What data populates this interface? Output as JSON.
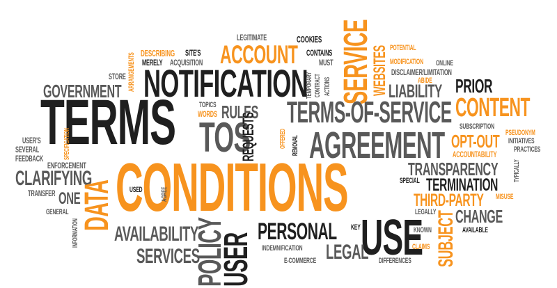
{
  "words": {
    "terms": "TERMS",
    "conditions": "CONDITIONS",
    "notification": "NOTIFICATION",
    "account": "ACCOUNT",
    "service": "SERVICE",
    "websites": "WEBSITES",
    "terms_of_service": "TERMS-OF-SERVICE",
    "agreement": "AGREEMENT",
    "tos": "TOS",
    "content": "CONTENT",
    "liability": "LIABILITY",
    "prior": "PRIOR",
    "government": "GOVERNMENT",
    "data": "DATA",
    "clarifying": "CLARIFYING",
    "one": "ONE",
    "availability": "AVAILABILITY",
    "services": "SERVICES",
    "policy": "POLICY",
    "user": "USER",
    "personal": "PERSONAL",
    "use": "USE",
    "legal": "LEGAL",
    "transparency": "TRANSPARENCY",
    "termination": "TERMINATION",
    "third_party": "THIRD-PARTY",
    "change": "CHANGE",
    "subject": "SUBJECT",
    "opt_out": "OPT-OUT",
    "rules": "RULES",
    "requests": "REQUESTS",
    "offered": "OFFERED",
    "removal": "REMOVAL",
    "words": "WORDS",
    "topics": "TOPICS",
    "legitimate": "LEGITIMATE",
    "cookies": "COOKIES",
    "contains": "CONTAINS",
    "must": "MUST",
    "temporary": "TEMPORARY",
    "contract": "CONTRACT",
    "actions": "ACTIONS",
    "describing": "DESCRIBING",
    "sites": "SITE'S",
    "merely": "MERELY",
    "acquisition": "ACQUISITION",
    "arrangements": "ARRANGEMENTS",
    "store": "STORE",
    "potential": "POTENTIAL",
    "modification": "MODIFICATION",
    "online": "ONLINE",
    "disclaimer": "DISCLAIMER/LIMITATION",
    "abide": "ABIDE",
    "subscription": "SUBSCRIPTION",
    "pseudonym": "PSEUDONYM",
    "initiatives": "INITIATIVES",
    "practices": "PRACTICES",
    "accountability": "ACCOUNTABILITY",
    "typically": "TYPICALLY",
    "users": "USER'S",
    "several": "SEVERAL",
    "feedback": "FEEDBACK",
    "specification": "SPECIFICATION",
    "enforcement": "ENFORCEMENT",
    "transfer": "TRANSFER",
    "general": "GENERAL",
    "information": "INFORMATION",
    "used": "USED",
    "agree": "AGREE",
    "special": "SPECIAL",
    "misuse": "MISUSE",
    "legally": "LEGALLY",
    "known": "KNOWN",
    "key": "KEY",
    "available": "AVAILABLE",
    "claims": "CLAIMS",
    "indemnification": "INDEMNIFICATION",
    "e_commerce": "E-COMMERCE",
    "differences": "DIFFERENCES"
  },
  "colors": {
    "dark": "#1f1f1f",
    "gray": "#595959",
    "light_gray": "#808080",
    "orange": "#f7931e"
  }
}
